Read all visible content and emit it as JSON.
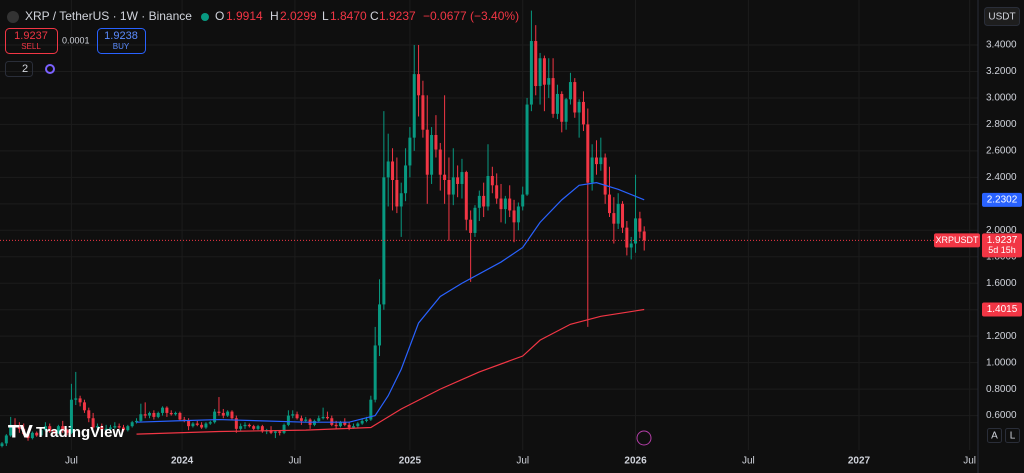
{
  "header": {
    "symbol": "XRP / TetherUS · 1W · Binance",
    "o_label": "O",
    "h_label": "H",
    "l_label": "L",
    "c_label": "C",
    "change": "−0.0677 (−3.40%)",
    "sell_price": "1.9237",
    "sell": "SELL",
    "spread": "0.0001",
    "buy_price": "1.9238",
    "buy": "BUY",
    "indicators": "2",
    "currency": "USDT",
    "ticker_tag": "XRPUSDT",
    "countdown": "5d 15h",
    "brand": "TradingView",
    "auto": "A",
    "log": "L"
  },
  "chart_data": {
    "type": "candlestick",
    "up_color": "#089981",
    "down_color": "#f23645",
    "candles": [
      [
        0.37,
        0.4,
        0.36,
        0.39
      ],
      [
        0.39,
        0.46,
        0.37,
        0.45
      ],
      [
        0.45,
        0.59,
        0.44,
        0.53
      ],
      [
        0.53,
        0.58,
        0.48,
        0.51
      ],
      [
        0.51,
        0.55,
        0.47,
        0.5
      ],
      [
        0.5,
        0.54,
        0.45,
        0.46
      ],
      [
        0.46,
        0.48,
        0.41,
        0.43
      ],
      [
        0.43,
        0.48,
        0.42,
        0.47
      ],
      [
        0.47,
        0.48,
        0.44,
        0.45
      ],
      [
        0.45,
        0.5,
        0.44,
        0.49
      ],
      [
        0.49,
        0.55,
        0.48,
        0.52
      ],
      [
        0.52,
        0.54,
        0.47,
        0.48
      ],
      [
        0.48,
        0.5,
        0.46,
        0.47
      ],
      [
        0.47,
        0.53,
        0.46,
        0.52
      ],
      [
        0.52,
        0.56,
        0.47,
        0.49
      ],
      [
        0.49,
        0.5,
        0.45,
        0.47
      ],
      [
        0.47,
        0.84,
        0.46,
        0.72
      ],
      [
        0.72,
        0.93,
        0.68,
        0.73
      ],
      [
        0.73,
        0.75,
        0.67,
        0.7
      ],
      [
        0.7,
        0.72,
        0.62,
        0.64
      ],
      [
        0.64,
        0.66,
        0.55,
        0.58
      ],
      [
        0.58,
        0.62,
        0.5,
        0.51
      ],
      [
        0.51,
        0.54,
        0.49,
        0.52
      ],
      [
        0.52,
        0.54,
        0.48,
        0.49
      ],
      [
        0.49,
        0.53,
        0.48,
        0.5
      ],
      [
        0.5,
        0.53,
        0.49,
        0.51
      ],
      [
        0.51,
        0.55,
        0.5,
        0.52
      ],
      [
        0.52,
        0.54,
        0.5,
        0.51
      ],
      [
        0.51,
        0.53,
        0.48,
        0.49
      ],
      [
        0.49,
        0.53,
        0.48,
        0.52
      ],
      [
        0.52,
        0.56,
        0.51,
        0.55
      ],
      [
        0.55,
        0.58,
        0.54,
        0.56
      ],
      [
        0.56,
        0.69,
        0.55,
        0.61
      ],
      [
        0.61,
        0.7,
        0.58,
        0.6
      ],
      [
        0.6,
        0.63,
        0.58,
        0.62
      ],
      [
        0.62,
        0.64,
        0.57,
        0.59
      ],
      [
        0.59,
        0.63,
        0.58,
        0.62
      ],
      [
        0.62,
        0.67,
        0.6,
        0.66
      ],
      [
        0.66,
        0.67,
        0.59,
        0.62
      ],
      [
        0.62,
        0.64,
        0.6,
        0.61
      ],
      [
        0.61,
        0.63,
        0.6,
        0.62
      ],
      [
        0.62,
        0.63,
        0.56,
        0.57
      ],
      [
        0.57,
        0.59,
        0.55,
        0.56
      ],
      [
        0.56,
        0.58,
        0.49,
        0.52
      ],
      [
        0.52,
        0.55,
        0.51,
        0.54
      ],
      [
        0.54,
        0.56,
        0.52,
        0.53
      ],
      [
        0.53,
        0.55,
        0.5,
        0.51
      ],
      [
        0.51,
        0.55,
        0.5,
        0.54
      ],
      [
        0.54,
        0.56,
        0.53,
        0.55
      ],
      [
        0.55,
        0.65,
        0.54,
        0.63
      ],
      [
        0.63,
        0.74,
        0.6,
        0.62
      ],
      [
        0.62,
        0.65,
        0.58,
        0.6
      ],
      [
        0.6,
        0.64,
        0.59,
        0.63
      ],
      [
        0.63,
        0.64,
        0.57,
        0.58
      ],
      [
        0.58,
        0.6,
        0.47,
        0.5
      ],
      [
        0.5,
        0.54,
        0.48,
        0.52
      ],
      [
        0.52,
        0.55,
        0.5,
        0.53
      ],
      [
        0.53,
        0.54,
        0.51,
        0.52
      ],
      [
        0.52,
        0.53,
        0.49,
        0.5
      ],
      [
        0.5,
        0.53,
        0.49,
        0.52
      ],
      [
        0.52,
        0.53,
        0.47,
        0.48
      ],
      [
        0.48,
        0.5,
        0.46,
        0.49
      ],
      [
        0.49,
        0.52,
        0.46,
        0.47
      ],
      [
        0.47,
        0.49,
        0.43,
        0.48
      ],
      [
        0.48,
        0.49,
        0.45,
        0.47
      ],
      [
        0.47,
        0.54,
        0.46,
        0.53
      ],
      [
        0.53,
        0.64,
        0.52,
        0.6
      ],
      [
        0.6,
        0.64,
        0.58,
        0.61
      ],
      [
        0.61,
        0.63,
        0.57,
        0.58
      ],
      [
        0.58,
        0.6,
        0.53,
        0.56
      ],
      [
        0.56,
        0.59,
        0.55,
        0.57
      ],
      [
        0.57,
        0.58,
        0.5,
        0.53
      ],
      [
        0.53,
        0.57,
        0.52,
        0.56
      ],
      [
        0.56,
        0.6,
        0.55,
        0.58
      ],
      [
        0.58,
        0.66,
        0.57,
        0.59
      ],
      [
        0.59,
        0.63,
        0.57,
        0.58
      ],
      [
        0.58,
        0.6,
        0.52,
        0.53
      ],
      [
        0.53,
        0.56,
        0.5,
        0.52
      ],
      [
        0.52,
        0.56,
        0.51,
        0.55
      ],
      [
        0.55,
        0.58,
        0.52,
        0.53
      ],
      [
        0.53,
        0.55,
        0.49,
        0.51
      ],
      [
        0.51,
        0.54,
        0.5,
        0.52
      ],
      [
        0.52,
        0.55,
        0.51,
        0.54
      ],
      [
        0.54,
        0.58,
        0.53,
        0.56
      ],
      [
        0.56,
        0.59,
        0.55,
        0.57
      ],
      [
        0.57,
        0.75,
        0.56,
        0.72
      ],
      [
        0.72,
        1.27,
        0.7,
        1.13
      ],
      [
        1.13,
        1.63,
        1.05,
        1.44
      ],
      [
        1.44,
        2.9,
        1.4,
        2.4
      ],
      [
        2.4,
        2.73,
        2.18,
        2.52
      ],
      [
        2.52,
        2.62,
        2.15,
        2.38
      ],
      [
        2.38,
        2.55,
        2.13,
        2.18
      ],
      [
        2.18,
        2.36,
        1.95,
        2.28
      ],
      [
        2.28,
        2.62,
        2.22,
        2.49
      ],
      [
        2.49,
        2.78,
        2.4,
        2.7
      ],
      [
        2.7,
        3.4,
        2.6,
        3.18
      ],
      [
        3.18,
        3.4,
        2.86,
        3.02
      ],
      [
        3.02,
        3.13,
        2.7,
        2.76
      ],
      [
        2.76,
        3.02,
        2.2,
        2.42
      ],
      [
        2.42,
        2.78,
        2.35,
        2.72
      ],
      [
        2.72,
        2.87,
        2.55,
        2.61
      ],
      [
        2.61,
        2.66,
        2.3,
        2.42
      ],
      [
        2.42,
        3.02,
        2.2,
        2.38
      ],
      [
        2.38,
        2.55,
        1.92,
        2.27
      ],
      [
        2.27,
        2.62,
        2.19,
        2.4
      ],
      [
        2.4,
        2.49,
        2.25,
        2.35
      ],
      [
        2.35,
        2.54,
        2.24,
        2.44
      ],
      [
        2.44,
        2.45,
        2.0,
        2.08
      ],
      [
        2.08,
        2.15,
        1.61,
        1.98
      ],
      [
        1.98,
        2.19,
        1.95,
        2.17
      ],
      [
        2.17,
        2.3,
        2.07,
        2.26
      ],
      [
        2.26,
        2.36,
        2.1,
        2.18
      ],
      [
        2.18,
        2.65,
        2.15,
        2.41
      ],
      [
        2.41,
        2.48,
        2.28,
        2.34
      ],
      [
        2.34,
        2.43,
        2.2,
        2.24
      ],
      [
        2.24,
        2.35,
        2.06,
        2.16
      ],
      [
        2.16,
        2.26,
        2.05,
        2.24
      ],
      [
        2.24,
        2.34,
        2.1,
        2.15
      ],
      [
        2.15,
        2.23,
        1.91,
        2.06
      ],
      [
        2.06,
        2.21,
        2.0,
        2.18
      ],
      [
        2.18,
        2.33,
        2.15,
        2.27
      ],
      [
        2.27,
        3.0,
        2.26,
        2.95
      ],
      [
        2.95,
        3.66,
        2.9,
        3.43
      ],
      [
        3.43,
        3.55,
        3.02,
        3.09
      ],
      [
        3.09,
        3.34,
        2.95,
        3.3
      ],
      [
        3.3,
        3.32,
        2.9,
        3.1
      ],
      [
        3.1,
        3.3,
        3.0,
        3.15
      ],
      [
        3.15,
        3.3,
        2.85,
        2.88
      ],
      [
        2.88,
        3.1,
        2.84,
        3.03
      ],
      [
        3.03,
        3.05,
        2.74,
        2.82
      ],
      [
        2.82,
        3.0,
        2.76,
        2.99
      ],
      [
        2.99,
        3.19,
        2.95,
        3.12
      ],
      [
        3.12,
        3.15,
        2.85,
        2.89
      ],
      [
        2.89,
        2.99,
        2.7,
        2.97
      ],
      [
        2.97,
        3.05,
        2.75,
        2.8
      ],
      [
        2.8,
        2.92,
        1.27,
        2.36
      ],
      [
        2.36,
        2.65,
        2.3,
        2.55
      ],
      [
        2.55,
        2.68,
        2.42,
        2.5
      ],
      [
        2.5,
        2.7,
        2.45,
        2.55
      ],
      [
        2.55,
        2.58,
        2.2,
        2.27
      ],
      [
        2.27,
        2.48,
        2.1,
        2.13
      ],
      [
        2.13,
        2.25,
        1.9,
        2.05
      ],
      [
        2.05,
        2.28,
        2.01,
        2.2
      ],
      [
        2.2,
        2.22,
        1.98,
        2.02
      ],
      [
        2.02,
        2.07,
        1.81,
        1.87
      ],
      [
        1.87,
        1.95,
        1.78,
        1.9
      ],
      [
        1.9,
        2.42,
        1.83,
        2.09
      ],
      [
        2.09,
        2.14,
        1.94,
        1.99
      ],
      [
        1.9914,
        2.0299,
        1.847,
        1.9237
      ]
    ],
    "ohlc_labels": [
      "1.9914",
      "2.0299",
      "1.8470",
      "1.9237"
    ],
    "series": [
      {
        "color": "#2962ff",
        "x": [
          31,
          40,
          50,
          60,
          70,
          80,
          86,
          89,
          92,
          96,
          101,
          106,
          115,
          120,
          124,
          129,
          133,
          137,
          142,
          148
        ],
        "values": [
          0.55,
          0.56,
          0.57,
          0.56,
          0.55,
          0.55,
          0.6,
          0.75,
          0.95,
          1.3,
          1.5,
          1.6,
          1.76,
          1.87,
          2.06,
          2.23,
          2.34,
          2.36,
          2.31,
          2.2302
        ]
      },
      {
        "color": "#f23645",
        "x": [
          31,
          50,
          70,
          85,
          92,
          101,
          110,
          120,
          124,
          131,
          138,
          148
        ],
        "values": [
          0.46,
          0.48,
          0.49,
          0.51,
          0.65,
          0.8,
          0.93,
          1.05,
          1.17,
          1.29,
          1.35,
          1.4015
        ]
      }
    ],
    "xlim": [
      0,
      224
    ],
    "xticks": [
      {
        "value": 16,
        "label": "Jul"
      },
      {
        "value": 41.5,
        "label": "2024"
      },
      {
        "value": 67.5,
        "label": "Jul"
      },
      {
        "value": 94,
        "label": "2025"
      },
      {
        "value": 120,
        "label": "Jul"
      },
      {
        "value": 146,
        "label": "2026"
      },
      {
        "value": 172,
        "label": "Jul"
      },
      {
        "value": 197.5,
        "label": "2027"
      },
      {
        "value": 223,
        "label": "Jul"
      }
    ],
    "ylim": [
      0.34,
      3.74
    ],
    "yticks": [
      {
        "value": 0.6,
        "label": "0.6000"
      },
      {
        "value": 0.8,
        "label": "0.8000"
      },
      {
        "value": 1.0,
        "label": "1.0000"
      },
      {
        "value": 1.2,
        "label": "1.2000"
      },
      {
        "value": 1.4,
        "label": "1.4000"
      },
      {
        "value": 1.6,
        "label": "1.6000"
      },
      {
        "value": 1.8,
        "label": "1.8000"
      },
      {
        "value": 2.0,
        "label": "2.0000"
      },
      {
        "value": 2.2,
        "label": "2.2000"
      },
      {
        "value": 2.4,
        "label": "2.4000"
      },
      {
        "value": 2.6,
        "label": "2.6000"
      },
      {
        "value": 2.8,
        "label": "2.8000"
      },
      {
        "value": 3.0,
        "label": "3.0000"
      },
      {
        "value": 3.2,
        "label": "3.2000"
      },
      {
        "value": 3.4,
        "label": "3.4000"
      }
    ],
    "grid": true
  }
}
